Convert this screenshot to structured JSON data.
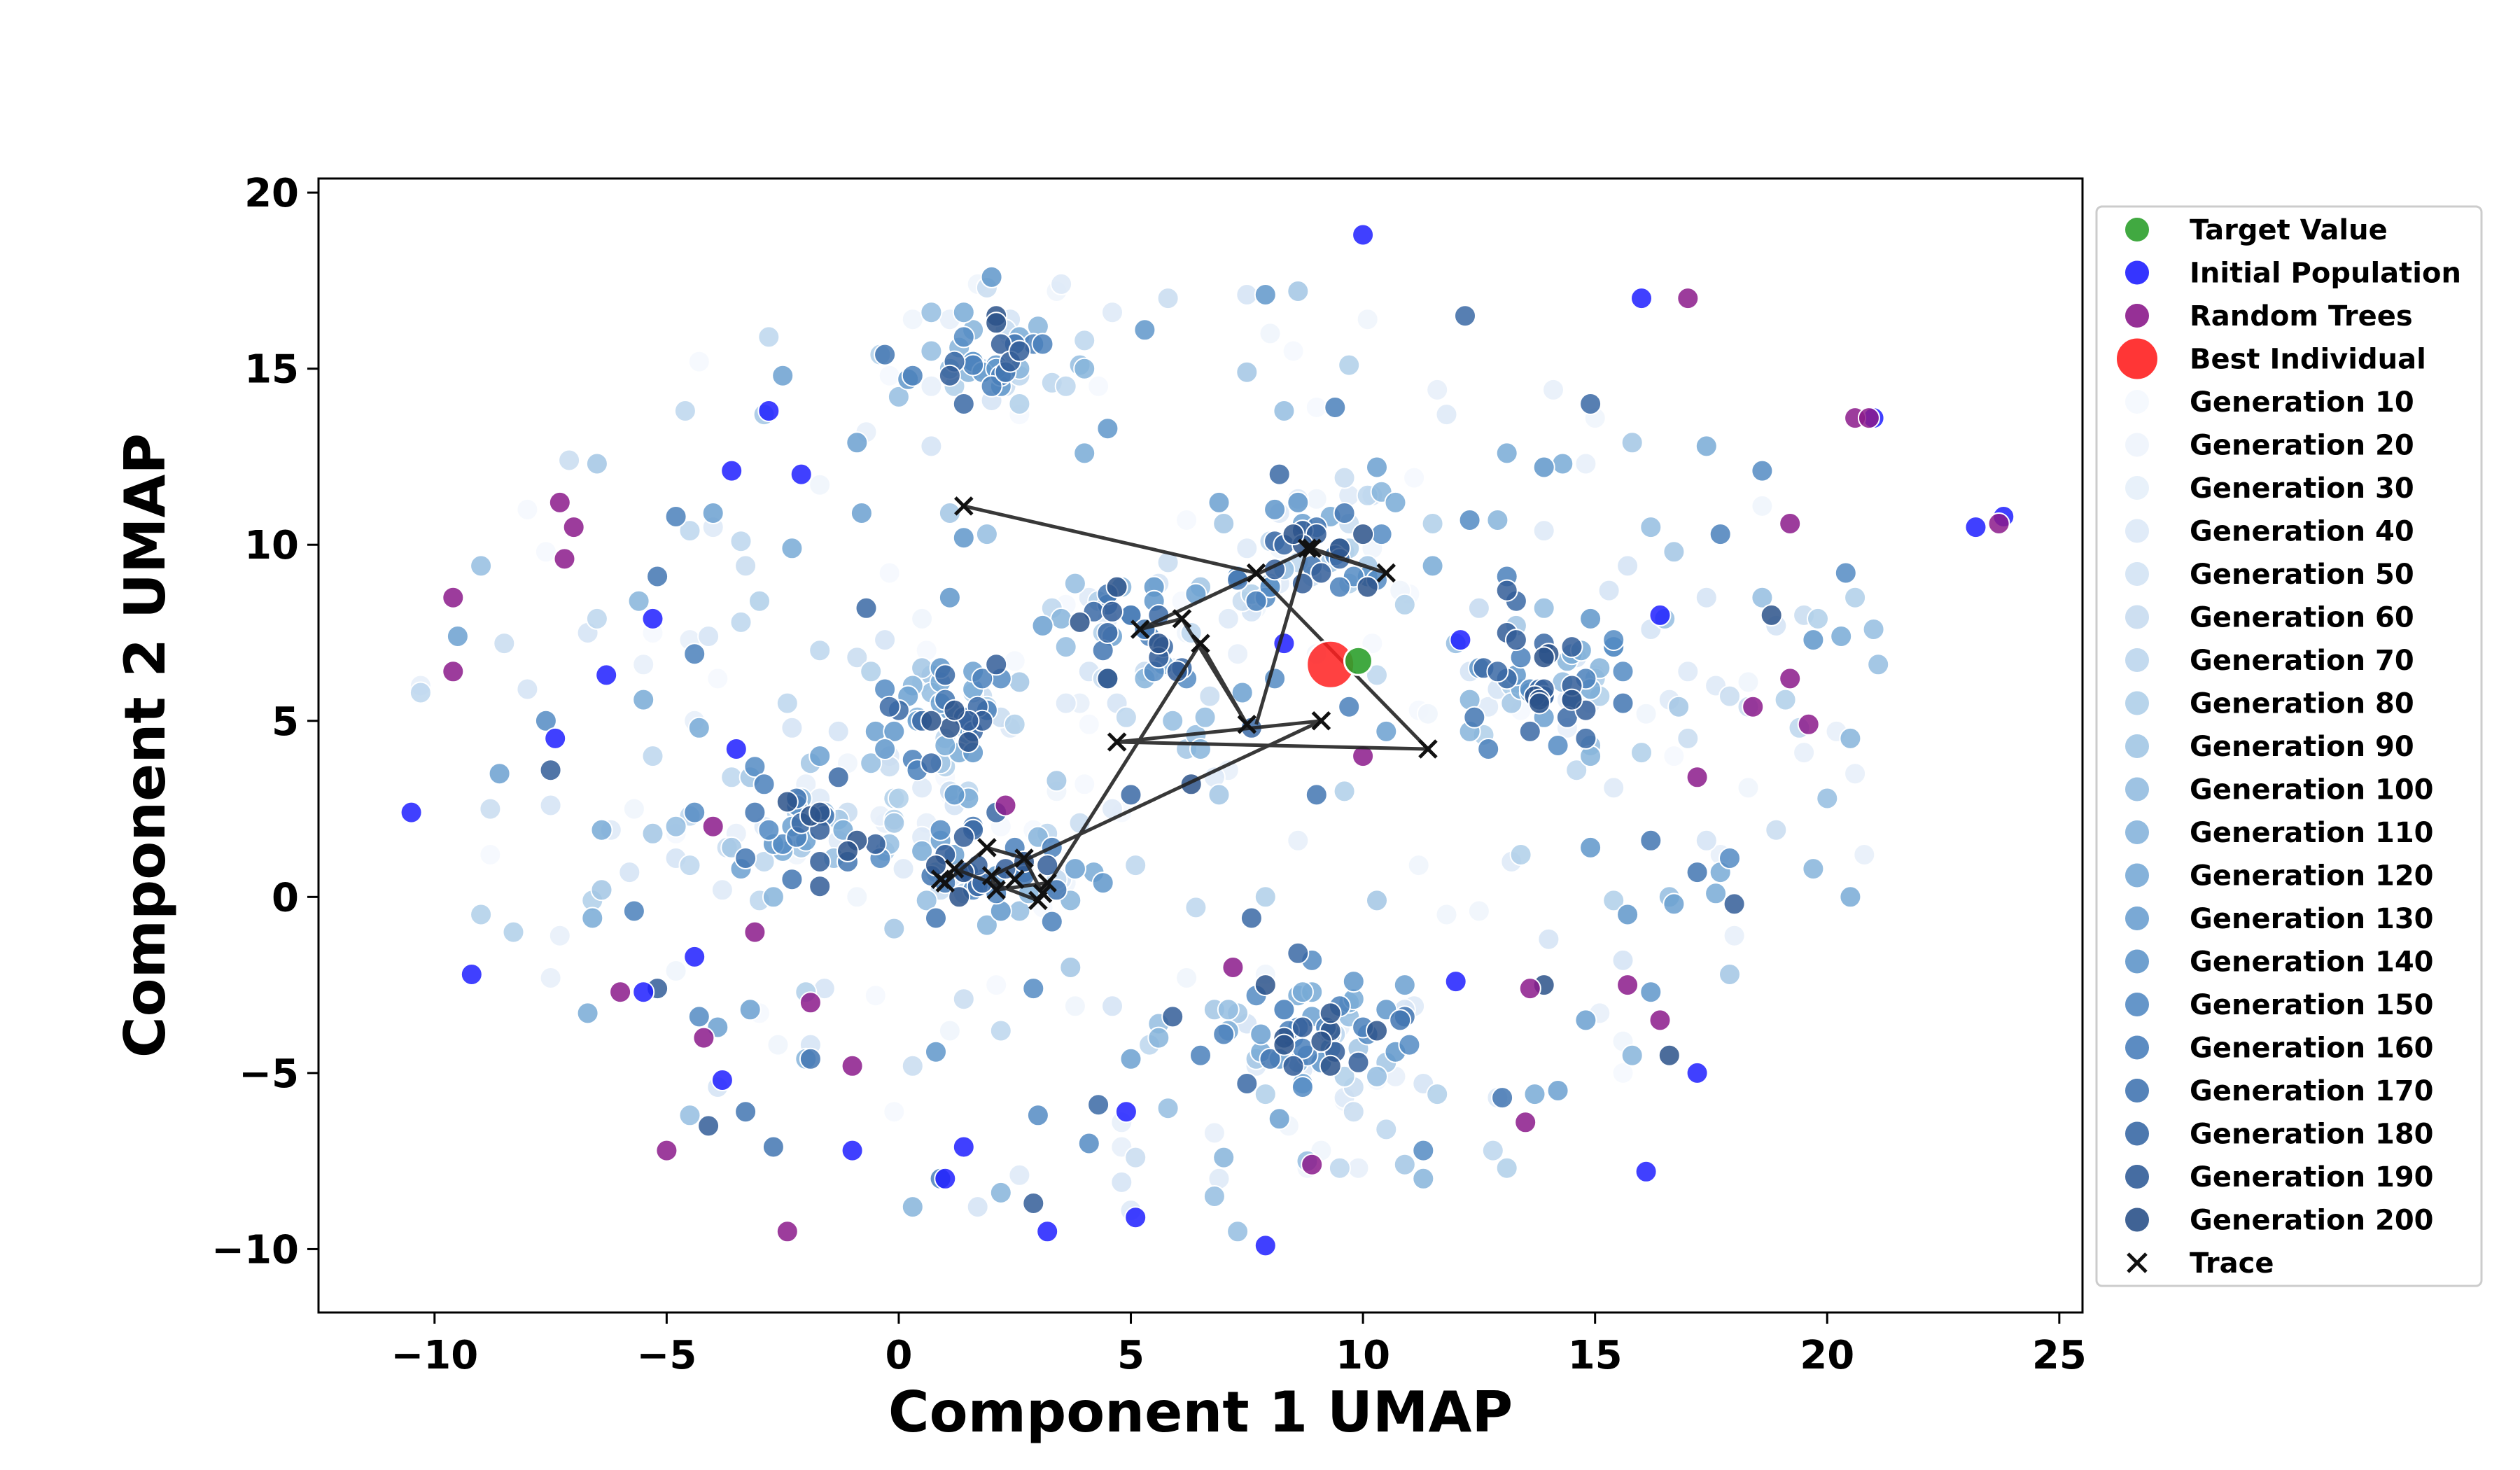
{
  "chart_data": {
    "type": "scatter",
    "title": "",
    "xlabel": "Component 1 UMAP",
    "ylabel": "Component 2 UMAP",
    "xlim": [
      -12.5,
      25.5
    ],
    "ylim": [
      -11.8,
      20.4
    ],
    "xticks": [
      -10,
      -5,
      0,
      5,
      10,
      15,
      20,
      25
    ],
    "yticks": [
      -10,
      -5,
      0,
      5,
      10,
      15,
      20
    ],
    "xtick_labels": [
      "−10",
      "−5",
      "0",
      "5",
      "10",
      "15",
      "20",
      "25"
    ],
    "ytick_labels": [
      "−10",
      "−5",
      "0",
      "5",
      "10",
      "15",
      "20"
    ],
    "grid": false,
    "legend_position": "right",
    "series": [
      {
        "name": "Target Value",
        "color": "#2ca02c",
        "marker": "circle",
        "points": [
          [
            9.9,
            6.7
          ]
        ]
      },
      {
        "name": "Initial Population",
        "color": "#1f1fff",
        "marker": "circle",
        "points": [
          [
            -10.5,
            2.4
          ],
          [
            -9.2,
            -2.2
          ],
          [
            -7.4,
            4.5
          ],
          [
            -6.3,
            6.3
          ],
          [
            -5.5,
            -2.7
          ],
          [
            -5.3,
            7.9
          ],
          [
            -4.4,
            -1.7
          ],
          [
            -3.8,
            -5.2
          ],
          [
            -3.5,
            4.2
          ],
          [
            -2.8,
            13.8
          ],
          [
            -1.0,
            -7.2
          ],
          [
            1.0,
            -8.0
          ],
          [
            3.2,
            -9.5
          ],
          [
            4.9,
            -6.1
          ],
          [
            5.1,
            -9.1
          ],
          [
            7.9,
            -9.9
          ],
          [
            10.0,
            18.8
          ],
          [
            12.1,
            7.3
          ],
          [
            16.1,
            -7.8
          ],
          [
            16.0,
            17.0
          ],
          [
            16.4,
            8.0
          ],
          [
            17.2,
            -5.0
          ],
          [
            21.0,
            13.6
          ],
          [
            23.2,
            10.5
          ],
          [
            23.8,
            10.8
          ],
          [
            -2.1,
            12.0
          ],
          [
            -3.6,
            12.1
          ],
          [
            1.4,
            -7.1
          ],
          [
            8.3,
            7.2
          ],
          [
            12.0,
            -2.4
          ]
        ]
      },
      {
        "name": "Random Trees",
        "color": "#8b1a8b",
        "marker": "circle",
        "points": [
          [
            -7.3,
            11.2
          ],
          [
            -7.0,
            10.5
          ],
          [
            -6.0,
            -2.7
          ],
          [
            -5.0,
            -7.2
          ],
          [
            -4.2,
            -4.0
          ],
          [
            -4.0,
            2.0
          ],
          [
            -3.1,
            -1.0
          ],
          [
            -1.9,
            -3.0
          ],
          [
            -1.0,
            -4.8
          ],
          [
            2.3,
            2.6
          ],
          [
            8.9,
            -7.6
          ],
          [
            13.6,
            -2.6
          ],
          [
            15.7,
            -2.5
          ],
          [
            16.4,
            -3.5
          ],
          [
            17.0,
            17.0
          ],
          [
            18.4,
            5.4
          ],
          [
            19.2,
            6.2
          ],
          [
            19.6,
            4.9
          ],
          [
            20.6,
            13.6
          ],
          [
            20.9,
            13.6
          ],
          [
            23.7,
            10.6
          ],
          [
            -9.6,
            8.5
          ],
          [
            -9.6,
            6.4
          ],
          [
            -7.2,
            9.6
          ],
          [
            19.2,
            10.6
          ],
          [
            17.2,
            3.4
          ],
          [
            13.5,
            -6.4
          ],
          [
            -2.4,
            -9.5
          ],
          [
            7.2,
            -2.0
          ],
          [
            10.0,
            4.0
          ]
        ]
      },
      {
        "name": "Best Individual",
        "color": "#ff2020",
        "marker": "circle-large",
        "points": [
          [
            9.3,
            6.6
          ]
        ]
      },
      {
        "name": "Generation 10",
        "color": "#f4f8fe",
        "marker": "circle",
        "points": []
      },
      {
        "name": "Generation 20",
        "color": "#eef4fc",
        "marker": "circle",
        "points": []
      },
      {
        "name": "Generation 30",
        "color": "#e6eff9",
        "marker": "circle",
        "points": []
      },
      {
        "name": "Generation 40",
        "color": "#dde9f7",
        "marker": "circle",
        "points": []
      },
      {
        "name": "Generation 50",
        "color": "#d3e3f4",
        "marker": "circle",
        "points": []
      },
      {
        "name": "Generation 60",
        "color": "#c8dcf0",
        "marker": "circle",
        "points": []
      },
      {
        "name": "Generation 70",
        "color": "#bcd6ed",
        "marker": "circle",
        "points": []
      },
      {
        "name": "Generation 80",
        "color": "#afcfe9",
        "marker": "circle",
        "points": []
      },
      {
        "name": "Generation 90",
        "color": "#a2c6e4",
        "marker": "circle",
        "points": []
      },
      {
        "name": "Generation 100",
        "color": "#94bde0",
        "marker": "circle",
        "points": []
      },
      {
        "name": "Generation 110",
        "color": "#86b4db",
        "marker": "circle",
        "points": []
      },
      {
        "name": "Generation 120",
        "color": "#78aad6",
        "marker": "circle",
        "points": []
      },
      {
        "name": "Generation 130",
        "color": "#6ba0d0",
        "marker": "circle",
        "points": []
      },
      {
        "name": "Generation 140",
        "color": "#5f96ca",
        "marker": "circle",
        "points": []
      },
      {
        "name": "Generation 150",
        "color": "#548bc3",
        "marker": "circle",
        "points": []
      },
      {
        "name": "Generation 160",
        "color": "#4a80bb",
        "marker": "circle",
        "points": []
      },
      {
        "name": "Generation 170",
        "color": "#4275b1",
        "marker": "circle",
        "points": []
      },
      {
        "name": "Generation 180",
        "color": "#3a69a5",
        "marker": "circle",
        "points": []
      },
      {
        "name": "Generation 190",
        "color": "#325d98",
        "marker": "circle",
        "points": []
      },
      {
        "name": "Generation 200",
        "color": "#2b5289",
        "marker": "circle",
        "points": []
      },
      {
        "name": "Trace",
        "color": "#222222",
        "marker": "x",
        "points": [
          [
            1.4,
            11.1
          ],
          [
            7.7,
            9.2
          ],
          [
            11.4,
            4.2
          ],
          [
            4.7,
            4.4
          ],
          [
            9.1,
            5.0
          ],
          [
            7.5,
            4.9
          ],
          [
            6.5,
            7.2
          ],
          [
            5.2,
            7.6
          ],
          [
            6.1,
            7.9
          ],
          [
            8.9,
            9.9
          ],
          [
            10.5,
            9.2
          ],
          [
            8.8,
            9.9
          ],
          [
            3.1,
            0.1
          ],
          [
            2.7,
            1.1
          ],
          [
            2.1,
            0.2
          ],
          [
            1.9,
            1.4
          ],
          [
            1.2,
            0.8
          ],
          [
            0.9,
            0.5
          ],
          [
            1.0,
            0.4
          ],
          [
            3.0,
            -0.1
          ],
          [
            3.2,
            0.4
          ],
          [
            2.5,
            0.5
          ],
          [
            2.0,
            0.6
          ]
        ]
      }
    ],
    "trace_path": [
      [
        1.4,
        11.1
      ],
      [
        7.7,
        9.2
      ],
      [
        11.4,
        4.2
      ],
      [
        4.7,
        4.4
      ],
      [
        9.1,
        5.0
      ],
      [
        2.0,
        0.6
      ],
      [
        2.1,
        0.2
      ],
      [
        3.2,
        0.4
      ],
      [
        3.1,
        0.1
      ],
      [
        2.7,
        1.1
      ],
      [
        1.9,
        1.4
      ],
      [
        1.0,
        0.4
      ],
      [
        0.9,
        0.5
      ],
      [
        1.2,
        0.8
      ],
      [
        3.0,
        -0.1
      ],
      [
        6.5,
        7.2
      ],
      [
        7.5,
        4.9
      ],
      [
        6.1,
        7.9
      ],
      [
        5.2,
        7.6
      ],
      [
        8.9,
        9.9
      ],
      [
        10.5,
        9.2
      ],
      [
        8.8,
        9.9
      ],
      [
        7.7,
        4.9
      ]
    ]
  }
}
